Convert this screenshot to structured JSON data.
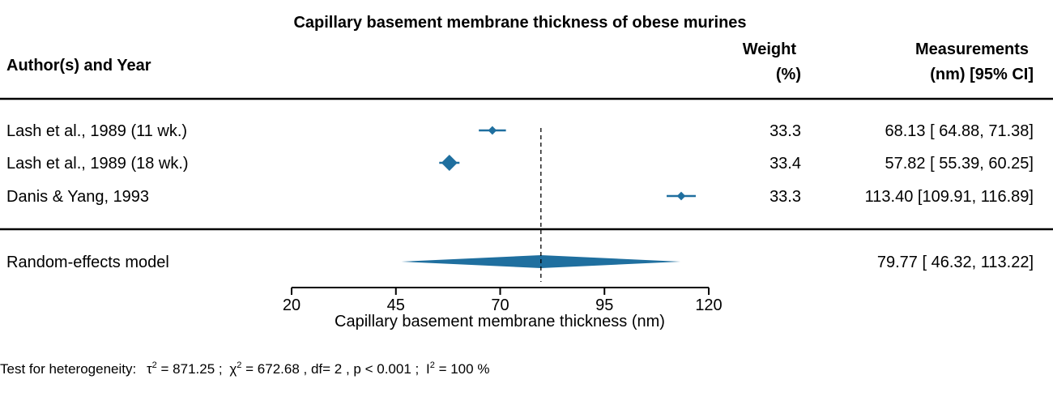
{
  "chart_data": {
    "type": "forest",
    "title": "Capillary basement membrane thickness of obese murines",
    "columns": {
      "study": "Author(s) and Year",
      "weight": [
        "Weight",
        "(%)"
      ],
      "measure": [
        "Measurements",
        "(nm) [95% CI]"
      ]
    },
    "studies": [
      {
        "label": "Lash et al., 1989 (11 wk.)",
        "estimate": 68.13,
        "ci": [
          64.88,
          71.38
        ],
        "weight": "33.3",
        "ci_text": "68.13 [ 64.88,  71.38]"
      },
      {
        "label": "Lash et al., 1989 (18 wk.)",
        "estimate": 57.82,
        "ci": [
          55.39,
          60.25
        ],
        "weight": "33.4",
        "ci_text": "57.82 [ 55.39,  60.25]"
      },
      {
        "label": "Danis & Yang, 1993",
        "estimate": 113.4,
        "ci": [
          109.91,
          116.89
        ],
        "weight": "33.3",
        "ci_text": "113.40 [109.91, 116.89]"
      }
    ],
    "summary": {
      "label": "Random-effects model",
      "estimate": 79.77,
      "ci": [
        46.32,
        113.22
      ],
      "ci_text": "79.77 [ 46.32, 113.22]"
    },
    "reference_line": 79.77,
    "xlim": [
      20,
      120
    ],
    "xticks": [
      20,
      45,
      70,
      95,
      120
    ],
    "xlabel": "Capillary basement membrane thickness (nm)",
    "heterogeneity": {
      "prefix": "Test for heterogeneity:",
      "tau2": "= 871.25 ;",
      "chi2": "= 672.68 , df= 2 ,  p < 0.001 ;",
      "i2": "= 100 %"
    },
    "colors": {
      "marker": "#1f6f9f",
      "line": "#000000"
    }
  }
}
